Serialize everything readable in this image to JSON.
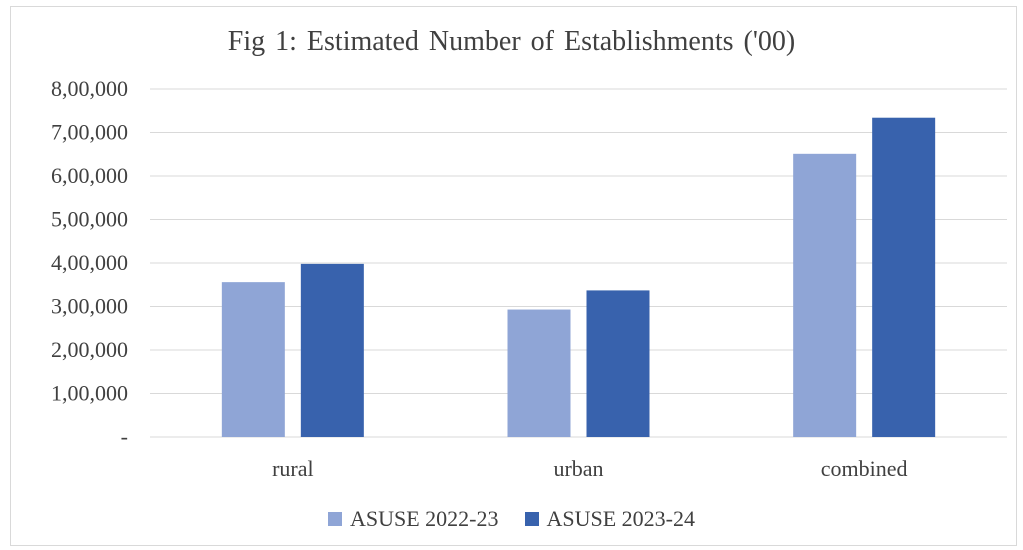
{
  "chart_data": {
    "type": "bar",
    "title": "Fig 1:  Estimated Number of Establishments  ('00)",
    "categories": [
      "rural",
      "urban",
      "combined"
    ],
    "series": [
      {
        "name": "ASUSE 2022-23",
        "values": [
          356000,
          293000,
          651000
        ],
        "color": "#8fa5d6"
      },
      {
        "name": "ASUSE 2023-24",
        "values": [
          398000,
          337000,
          734000
        ],
        "color": "#3862ad"
      }
    ],
    "ylim": [
      0,
      800000
    ],
    "yticks": [
      {
        "value": 0,
        "label": "-"
      },
      {
        "value": 100000,
        "label": "1,00,000"
      },
      {
        "value": 200000,
        "label": "2,00,000"
      },
      {
        "value": 300000,
        "label": "3,00,000"
      },
      {
        "value": 400000,
        "label": "4,00,000"
      },
      {
        "value": 500000,
        "label": "5,00,000"
      },
      {
        "value": 600000,
        "label": "6,00,000"
      },
      {
        "value": 700000,
        "label": "7,00,000"
      },
      {
        "value": 800000,
        "label": "8,00,000"
      }
    ],
    "grid": true,
    "legend_position": "bottom",
    "gridline_color": "#d9d9d9",
    "text_color": "#404040"
  }
}
